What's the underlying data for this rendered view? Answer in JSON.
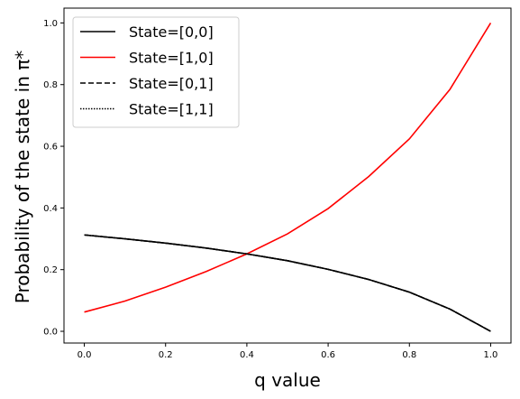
{
  "chart_data": {
    "type": "line",
    "xlabel": "q value",
    "ylabel": "Probability of the state in π*",
    "xlim": [
      -0.05,
      1.05
    ],
    "ylim": [
      -0.038,
      1.048
    ],
    "x_ticks": [
      "0.0",
      "0.2",
      "0.4",
      "0.6",
      "0.8",
      "1.0"
    ],
    "y_ticks": [
      "0.0",
      "0.2",
      "0.4",
      "0.6",
      "0.8",
      "1.0"
    ],
    "grid": false,
    "legend_position": "top-left",
    "x": [
      0.0,
      0.1,
      0.2,
      0.3,
      0.4,
      0.5,
      0.6,
      0.7,
      0.8,
      0.9,
      1.0
    ],
    "series": [
      {
        "name": "State=[0,0]",
        "color": "#000000",
        "dash": "solid",
        "values": [
          0.3125,
          0.3,
          0.286,
          0.27,
          0.251,
          0.229,
          0.201,
          0.168,
          0.127,
          0.072,
          0.0
        ]
      },
      {
        "name": "State=[1,0]",
        "color": "#ff0000",
        "dash": "solid",
        "values": [
          0.0625,
          0.098,
          0.143,
          0.194,
          0.251,
          0.316,
          0.398,
          0.502,
          0.624,
          0.785,
          1.0
        ]
      },
      {
        "name": "State=[0,1]",
        "color": "#000000",
        "dash": "dashed",
        "values": [
          0.3125,
          0.3,
          0.286,
          0.27,
          0.251,
          0.229,
          0.201,
          0.168,
          0.127,
          0.072,
          0.0
        ]
      },
      {
        "name": "State=[1,1]",
        "color": "#000000",
        "dash": "dotted",
        "values": [
          0.3125,
          0.3,
          0.286,
          0.27,
          0.251,
          0.229,
          0.201,
          0.168,
          0.127,
          0.072,
          0.0
        ]
      }
    ]
  }
}
